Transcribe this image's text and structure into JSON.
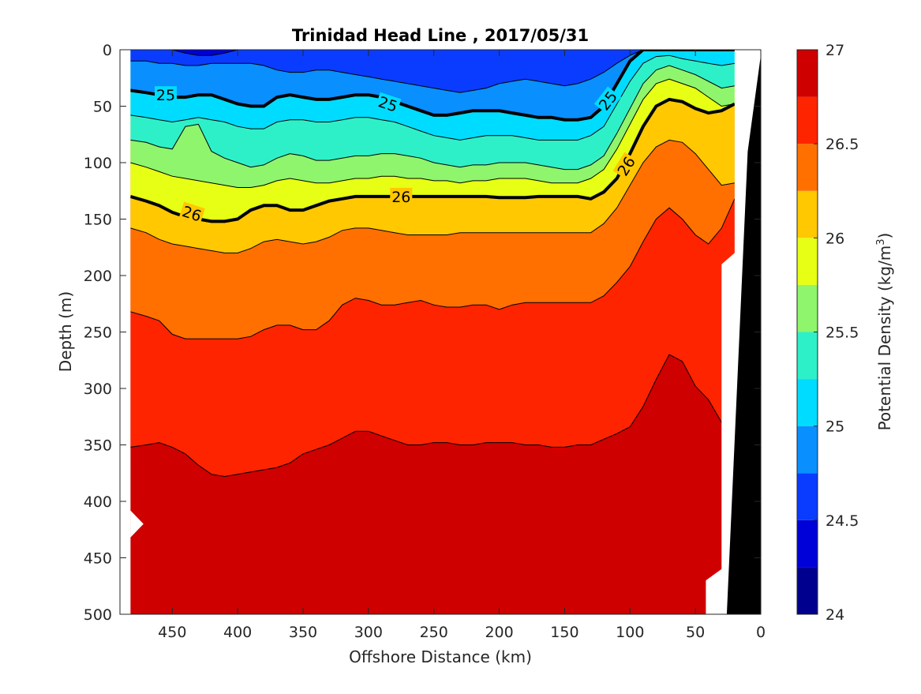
{
  "chart_data": {
    "type": "contour",
    "title": "Trinidad Head Line , 2017/05/31",
    "xlabel": "Offshore Distance (km)",
    "ylabel": "Depth (m)",
    "colorbar_label": "Potential Density (kg/m",
    "colorbar_label_sup": "3",
    "colorbar_label_tail": ")",
    "xlim": [
      490,
      0
    ],
    "x_reversed": true,
    "ylim": [
      0,
      500
    ],
    "y_reversed": true,
    "x_ticks": [
      "450",
      "400",
      "350",
      "300",
      "250",
      "200",
      "150",
      "100",
      "50",
      "0"
    ],
    "y_ticks": [
      "0",
      "50",
      "100",
      "150",
      "200",
      "250",
      "300",
      "350",
      "400",
      "450",
      "500"
    ],
    "colorbar_ticks": [
      "27",
      "26.5",
      "26",
      "25.5",
      "25",
      "24.5",
      "24"
    ],
    "colorbar_range": [
      24,
      27
    ],
    "levels": [
      24,
      24.25,
      24.5,
      24.75,
      25,
      25.25,
      25.5,
      25.75,
      26,
      26.25,
      26.5,
      26.75,
      27
    ],
    "level_colors": [
      "#00008f",
      "#0000d8",
      "#0a3cff",
      "#0a8fff",
      "#00dcff",
      "#2ef0c8",
      "#8ef56c",
      "#e6ff14",
      "#ffc800",
      "#ff7000",
      "#ff2400",
      "#cf0000"
    ],
    "contour_labels": [
      "25",
      "25",
      "25",
      "26",
      "26",
      "26"
    ],
    "grid": false,
    "legend": "colorbar-right",
    "isopycnals": {
      "x": [
        482,
        470,
        460,
        450,
        440,
        430,
        420,
        410,
        400,
        390,
        380,
        370,
        360,
        350,
        340,
        330,
        320,
        310,
        300,
        290,
        280,
        270,
        260,
        250,
        240,
        230,
        220,
        210,
        200,
        190,
        180,
        170,
        160,
        150,
        140,
        130,
        120,
        110,
        100,
        90,
        80,
        70,
        60,
        50,
        40,
        30,
        20
      ],
      "d24_5": [
        0,
        0,
        0,
        0,
        3,
        5,
        5,
        3,
        0,
        0,
        0,
        0,
        0,
        0,
        0,
        0,
        0,
        0,
        0,
        0,
        0,
        0,
        0,
        0,
        0,
        0,
        0,
        0,
        0,
        0,
        0,
        0,
        0,
        0,
        0,
        0,
        0,
        0,
        0,
        0,
        0,
        0,
        0,
        0,
        0,
        0,
        0
      ],
      "d24_75": [
        10,
        10,
        12,
        12,
        14,
        14,
        12,
        12,
        12,
        12,
        14,
        18,
        20,
        20,
        18,
        18,
        20,
        22,
        24,
        26,
        28,
        30,
        32,
        34,
        36,
        38,
        36,
        34,
        30,
        28,
        26,
        28,
        30,
        32,
        30,
        26,
        20,
        12,
        5,
        0,
        0,
        0,
        0,
        0,
        0,
        0,
        0
      ],
      "d25": [
        36,
        38,
        40,
        42,
        42,
        40,
        40,
        44,
        48,
        50,
        50,
        42,
        40,
        42,
        44,
        44,
        42,
        40,
        40,
        42,
        46,
        50,
        54,
        58,
        58,
        56,
        54,
        54,
        54,
        56,
        58,
        60,
        60,
        62,
        62,
        60,
        50,
        30,
        10,
        0,
        0,
        0,
        0,
        0,
        0,
        0,
        0
      ],
      "d25_25": [
        58,
        60,
        62,
        64,
        62,
        60,
        62,
        64,
        68,
        70,
        70,
        64,
        62,
        62,
        64,
        64,
        62,
        60,
        60,
        62,
        64,
        68,
        72,
        76,
        78,
        80,
        78,
        76,
        76,
        76,
        78,
        80,
        80,
        80,
        80,
        76,
        68,
        48,
        28,
        12,
        6,
        5,
        8,
        10,
        12,
        14,
        12
      ],
      "d25_5": [
        80,
        82,
        86,
        88,
        68,
        66,
        90,
        96,
        100,
        104,
        102,
        96,
        92,
        94,
        98,
        98,
        96,
        94,
        94,
        92,
        92,
        94,
        96,
        100,
        102,
        104,
        102,
        102,
        100,
        100,
        100,
        102,
        104,
        106,
        106,
        102,
        94,
        74,
        52,
        30,
        18,
        14,
        18,
        22,
        28,
        34,
        32
      ],
      "d25_75": [
        100,
        104,
        108,
        112,
        114,
        116,
        118,
        120,
        122,
        122,
        120,
        116,
        114,
        116,
        118,
        118,
        116,
        114,
        114,
        112,
        112,
        114,
        114,
        116,
        116,
        118,
        116,
        116,
        114,
        114,
        114,
        116,
        118,
        118,
        118,
        114,
        106,
        88,
        66,
        44,
        30,
        26,
        30,
        34,
        42,
        50,
        48
      ],
      "d26": [
        130,
        134,
        138,
        144,
        148,
        150,
        152,
        152,
        150,
        142,
        138,
        138,
        142,
        142,
        138,
        134,
        132,
        130,
        130,
        130,
        130,
        130,
        130,
        130,
        130,
        130,
        130,
        130,
        131,
        131,
        131,
        130,
        130,
        130,
        130,
        132,
        126,
        114,
        92,
        68,
        50,
        44,
        46,
        52,
        56,
        54,
        48
      ],
      "d26_25": [
        158,
        162,
        168,
        172,
        174,
        176,
        178,
        180,
        180,
        176,
        170,
        168,
        170,
        172,
        170,
        166,
        160,
        158,
        158,
        160,
        162,
        164,
        164,
        164,
        164,
        162,
        162,
        162,
        162,
        162,
        162,
        162,
        162,
        162,
        162,
        162,
        154,
        140,
        120,
        100,
        86,
        80,
        82,
        92,
        106,
        120,
        118
      ],
      "d26_5": [
        232,
        236,
        240,
        252,
        256,
        256,
        256,
        256,
        256,
        254,
        248,
        244,
        244,
        248,
        248,
        240,
        226,
        220,
        222,
        226,
        226,
        224,
        222,
        226,
        228,
        228,
        226,
        226,
        230,
        226,
        224,
        224,
        224,
        224,
        224,
        224,
        218,
        206,
        192,
        170,
        150,
        140,
        150,
        164,
        172,
        158,
        132
      ],
      "d26_75": [
        352,
        350,
        348,
        352,
        358,
        368,
        376,
        378,
        376,
        374,
        372,
        370,
        366,
        358,
        354,
        350,
        344,
        338,
        338,
        342,
        346,
        350,
        350,
        348,
        348,
        350,
        350,
        348,
        348,
        348,
        350,
        350,
        352,
        352,
        350,
        350,
        345,
        340,
        334,
        316,
        292,
        270,
        276,
        298,
        310,
        330,
        345
      ]
    }
  }
}
